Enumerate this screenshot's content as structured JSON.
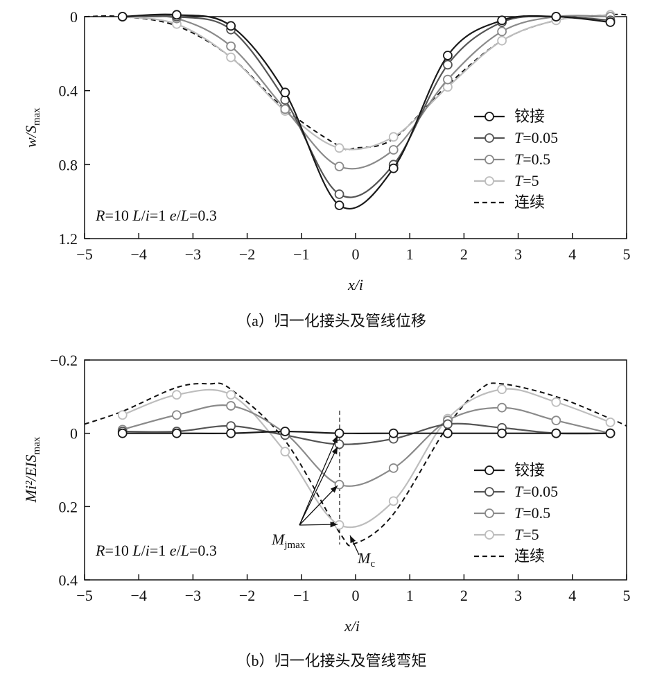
{
  "chart_data": [
    {
      "type": "line",
      "id": "a",
      "caption": "（a）归一化接头及管线位移",
      "xlabel": "x/i",
      "ylabel_main": "w/S",
      "ylabel_sub": "max",
      "xlim": [
        -5,
        5
      ],
      "ylim": [
        0,
        1.2
      ],
      "y_inverted": true,
      "xticks": [
        -5,
        -4,
        -3,
        -2,
        -1,
        0,
        1,
        2,
        3,
        4,
        5
      ],
      "xtick_labels": [
        "−5",
        "−4",
        "−3",
        "−2",
        "−1",
        "0",
        "1",
        "2",
        "3",
        "4",
        "5"
      ],
      "yticks": [
        0,
        0.4,
        0.8,
        1.2
      ],
      "ytick_labels": [
        "0",
        "0.4",
        "0.8",
        "1.2"
      ],
      "annotation": {
        "parts": [
          "R",
          "=10 ",
          "L",
          "/",
          "i",
          "=1 ",
          "e",
          "/",
          "L",
          "=0.3"
        ]
      },
      "series": [
        {
          "name": "铰接",
          "name_T": "",
          "name_val": "",
          "color": "#1a1a1a",
          "marker": "circle",
          "x": [
            -4.3,
            -3.3,
            -2.3,
            -1.3,
            -0.3,
            0.7,
            1.7,
            2.7,
            3.7,
            4.7
          ],
          "y": [
            0.0,
            -0.01,
            0.05,
            0.41,
            1.02,
            0.82,
            0.21,
            0.02,
            0.0,
            0.03
          ]
        },
        {
          "name": "",
          "name_T": "T",
          "name_val": "=0.05",
          "color": "#555555",
          "marker": "circle",
          "x": [
            -4.3,
            -3.3,
            -2.3,
            -1.3,
            -0.3,
            0.7,
            1.7,
            2.7,
            3.7,
            4.7
          ],
          "y": [
            0.0,
            0.0,
            0.07,
            0.45,
            0.96,
            0.8,
            0.26,
            0.03,
            0.0,
            0.02
          ]
        },
        {
          "name": "",
          "name_T": "T",
          "name_val": "=0.5",
          "color": "#8a8a8a",
          "marker": "circle",
          "x": [
            -4.3,
            -3.3,
            -2.3,
            -1.3,
            -0.3,
            0.7,
            1.7,
            2.7,
            3.7,
            4.7
          ],
          "y": [
            0.0,
            0.01,
            0.16,
            0.5,
            0.81,
            0.72,
            0.34,
            0.08,
            0.0,
            0.0
          ]
        },
        {
          "name": "",
          "name_T": "T",
          "name_val": "=5",
          "color": "#bdbdbd",
          "marker": "circle",
          "x": [
            -4.3,
            -3.3,
            -2.3,
            -1.3,
            -0.3,
            0.7,
            1.7,
            2.7,
            3.7,
            4.7
          ],
          "y": [
            0.0,
            0.04,
            0.22,
            0.51,
            0.71,
            0.65,
            0.38,
            0.13,
            0.02,
            -0.01
          ]
        },
        {
          "name": "连续",
          "name_T": "",
          "name_val": "",
          "color": "#111111",
          "marker": "none",
          "dashed": true,
          "x": [
            -5,
            -4.3,
            -3.3,
            -2.3,
            -1.3,
            -0.3,
            0.0,
            0.7,
            1.7,
            2.7,
            3.7,
            4.7,
            5
          ],
          "y": [
            0.0,
            0.0,
            0.05,
            0.22,
            0.5,
            0.7,
            0.71,
            0.66,
            0.37,
            0.13,
            0.02,
            -0.01,
            -0.01
          ]
        }
      ]
    },
    {
      "type": "line",
      "id": "b",
      "caption": "（b）归一化接头及管线弯矩",
      "xlabel": "x/i",
      "ylabel_main": "Mi²/EIS",
      "ylabel_sub": "max",
      "xlim": [
        -5,
        5
      ],
      "ylim": [
        -0.2,
        0.4
      ],
      "y_inverted": true,
      "xticks": [
        -5,
        -4,
        -3,
        -2,
        -1,
        0,
        1,
        2,
        3,
        4,
        5
      ],
      "xtick_labels": [
        "−5",
        "−4",
        "−3",
        "−2",
        "−1",
        "0",
        "1",
        "2",
        "3",
        "4",
        "5"
      ],
      "yticks": [
        -0.2,
        0,
        0.2,
        0.4
      ],
      "ytick_labels": [
        "−0.2",
        "0",
        "0.2",
        "0.4"
      ],
      "annotation": {
        "parts": [
          "R",
          "=10 ",
          "L",
          "/",
          "i",
          "=1 ",
          "e",
          "/",
          "L",
          "=0.3"
        ]
      },
      "arrow_labels": {
        "mj": "M",
        "mj_sub": "jmax",
        "mc": "M",
        "mc_sub": "c"
      },
      "series": [
        {
          "name": "铰接",
          "name_T": "",
          "name_val": "",
          "color": "#1a1a1a",
          "marker": "circle",
          "x": [
            -4.3,
            -3.3,
            -2.3,
            -1.3,
            -0.3,
            0.7,
            1.7,
            2.7,
            3.7,
            4.7
          ],
          "y": [
            0.0,
            0.0,
            0.0,
            -0.005,
            0.0,
            0.0,
            0.0,
            0.0,
            0.0,
            0.0
          ]
        },
        {
          "name": "",
          "name_T": "T",
          "name_val": "=0.05",
          "color": "#555555",
          "marker": "circle",
          "x": [
            -4.3,
            -3.3,
            -2.3,
            -1.3,
            -0.3,
            0.7,
            1.7,
            2.7,
            3.7,
            4.7
          ],
          "y": [
            -0.005,
            -0.005,
            -0.02,
            0.005,
            0.03,
            0.015,
            -0.025,
            -0.015,
            0.0,
            0.0
          ]
        },
        {
          "name": "",
          "name_T": "T",
          "name_val": "=0.5",
          "color": "#8a8a8a",
          "marker": "circle",
          "x": [
            -4.3,
            -3.3,
            -2.3,
            -1.3,
            -0.3,
            0.7,
            1.7,
            2.7,
            3.7,
            4.7
          ],
          "y": [
            -0.01,
            -0.05,
            -0.075,
            0.0,
            0.14,
            0.095,
            -0.035,
            -0.07,
            -0.035,
            0.0
          ]
        },
        {
          "name": "",
          "name_T": "T",
          "name_val": "=5",
          "color": "#bdbdbd",
          "marker": "circle",
          "x": [
            -4.3,
            -3.3,
            -2.3,
            -1.3,
            -0.3,
            0.7,
            1.7,
            2.7,
            3.7,
            4.7
          ],
          "y": [
            -0.05,
            -0.105,
            -0.105,
            0.05,
            0.25,
            0.185,
            -0.04,
            -0.12,
            -0.085,
            -0.03
          ]
        },
        {
          "name": "连续",
          "name_T": "",
          "name_val": "",
          "color": "#111111",
          "marker": "none",
          "dashed": true,
          "x": [
            -5,
            -4.3,
            -3.3,
            -2.7,
            -2.3,
            -1.3,
            -0.3,
            0.0,
            0.7,
            1.7,
            2.3,
            2.7,
            3.7,
            4.7,
            5
          ],
          "y": [
            -0.025,
            -0.06,
            -0.125,
            -0.135,
            -0.12,
            0.02,
            0.27,
            0.3,
            0.22,
            -0.02,
            -0.12,
            -0.135,
            -0.1,
            -0.04,
            -0.02
          ]
        }
      ]
    }
  ]
}
